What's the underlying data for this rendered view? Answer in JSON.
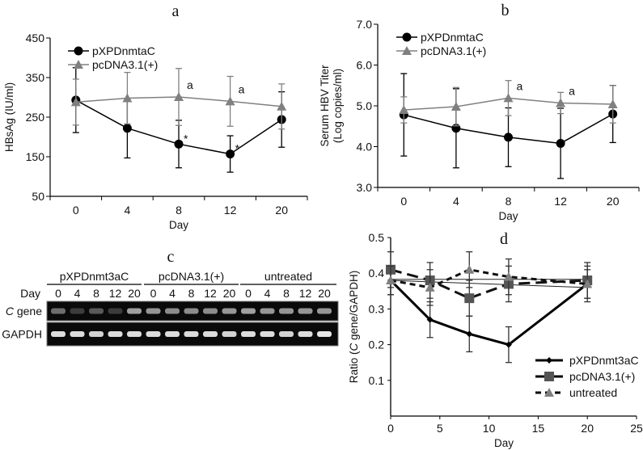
{
  "chart_data": [
    {
      "id": "a",
      "type": "line",
      "title": "a",
      "xlabel": "Day",
      "ylabel": "HBsAg (IU/ml)",
      "categories": [
        "0",
        "4",
        "8",
        "12",
        "20"
      ],
      "ylim": [
        50,
        450
      ],
      "yticks": [
        "50",
        "150",
        "250",
        "350",
        "450"
      ],
      "legend": "top-left",
      "series": [
        {
          "name": "pXPDnmtaC",
          "marker": "circle",
          "color": "#000000",
          "values": [
            293,
            222,
            182,
            157,
            244
          ],
          "errors": [
            82,
            75,
            60,
            46,
            70
          ]
        },
        {
          "name": "pcDNA3.1(+)",
          "marker": "triangle",
          "color": "#808080",
          "values": [
            288,
            298,
            301,
            290,
            277
          ],
          "errors": [
            58,
            65,
            72,
            63,
            57
          ]
        }
      ],
      "annotations": [
        {
          "text": "a",
          "series": 1,
          "category": "8"
        },
        {
          "text": "a",
          "series": 1,
          "category": "12"
        },
        {
          "text": "*",
          "series": 0,
          "category": "8"
        },
        {
          "text": "*",
          "series": 0,
          "category": "12"
        }
      ]
    },
    {
      "id": "b",
      "type": "line",
      "title": "b",
      "xlabel": "Day",
      "ylabel": [
        "Serum HBV Titer",
        "(Log copies/ml)"
      ],
      "categories": [
        "0",
        "4",
        "8",
        "12",
        "20"
      ],
      "ylim": [
        3.0,
        7.0
      ],
      "yticks": [
        "3.0",
        "4.0",
        "5.0",
        "6.0",
        "7.0"
      ],
      "legend": "top-left",
      "series": [
        {
          "name": "pXPDnmtaC",
          "marker": "circle",
          "color": "#000000",
          "values": [
            4.78,
            4.45,
            4.23,
            4.08,
            4.8
          ],
          "errors": [
            1.01,
            0.97,
            0.72,
            0.86,
            0.7
          ]
        },
        {
          "name": "pcDNA3.1(+)",
          "marker": "triangle",
          "color": "#808080",
          "values": [
            4.9,
            4.98,
            5.19,
            5.07,
            5.04
          ],
          "errors": [
            0.32,
            0.47,
            0.43,
            0.26,
            0.46
          ]
        }
      ],
      "annotations": [
        {
          "text": "a",
          "series": 1,
          "category": "8"
        },
        {
          "text": "a",
          "series": 1,
          "category": "12"
        }
      ]
    },
    {
      "id": "c",
      "type": "gel",
      "title": "c",
      "groups": [
        "pXPDnmt3aC",
        "pcDNA3.1(+)",
        "untreated"
      ],
      "day_label": "Day",
      "days": [
        "0",
        "4",
        "8",
        "12",
        "20"
      ],
      "rows": [
        {
          "label_italic": "C",
          "label_rest": " gene",
          "intensity": [
            0.35,
            0.1,
            0.25,
            0.1,
            0.6,
            0.55,
            0.5,
            0.5,
            0.5,
            0.55,
            0.6,
            0.55,
            0.55,
            0.55,
            0.55
          ]
        },
        {
          "label_italic": "",
          "label_rest": "GAPDH",
          "intensity": [
            0.9,
            0.9,
            0.85,
            0.9,
            0.9,
            0.9,
            0.9,
            0.9,
            0.9,
            0.85,
            0.9,
            0.9,
            0.85,
            0.9,
            0.95
          ]
        }
      ]
    },
    {
      "id": "d",
      "type": "line",
      "title": "d",
      "xlabel": "Day",
      "ylabel_prefix": "Ratio (",
      "ylabel_italic": "C",
      "ylabel_suffix": " gene/GAPDH)",
      "xlim": [
        0,
        25
      ],
      "ylim": [
        0,
        0.5
      ],
      "xticks": [
        "0",
        "5",
        "10",
        "15",
        "20",
        "25"
      ],
      "yticks": [
        "0.1",
        "0.2",
        "0.3",
        "0.4",
        "0.5"
      ],
      "legend": "bottom-right",
      "x": [
        0,
        4,
        8,
        12,
        20
      ],
      "series": [
        {
          "name": "pXPDnmt3aC",
          "marker": "diamond",
          "dash": "solid",
          "color": "#000000",
          "values": [
            0.38,
            0.27,
            0.23,
            0.2,
            0.37
          ],
          "errors": [
            0.04,
            0.05,
            0.05,
            0.05,
            0.04
          ]
        },
        {
          "name": "pcDNA3.1(+)",
          "marker": "square",
          "dash": "long-dash",
          "color": "#555555",
          "values": [
            0.41,
            0.38,
            0.33,
            0.37,
            0.38
          ],
          "errors": [
            0.05,
            0.05,
            0.05,
            0.05,
            0.05
          ]
        },
        {
          "name": "untreated",
          "marker": "triangle",
          "dash": "short-dash",
          "color": "#808080",
          "values": [
            0.38,
            0.36,
            0.41,
            0.39,
            0.37
          ],
          "errors": [
            0.04,
            0.05,
            0.05,
            0.05,
            0.05
          ]
        }
      ],
      "trend_lines": [
        {
          "x": [
            0,
            20
          ],
          "y": [
            0.383,
            0.383
          ]
        },
        {
          "x": [
            0,
            20
          ],
          "y": [
            0.38,
            0.36
          ]
        }
      ]
    }
  ]
}
